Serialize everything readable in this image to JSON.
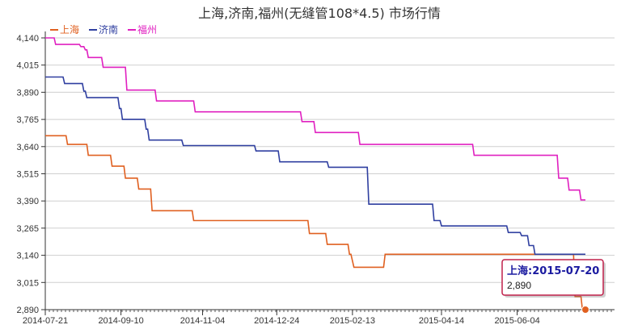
{
  "chart_data": {
    "type": "line",
    "title": "上海,济南,福州(无缝管108*4.5) 市场行情",
    "xlabel": "",
    "ylabel": "",
    "ylim": [
      2890,
      4140
    ],
    "yticks": [
      "2,890",
      "3,015",
      "3,140",
      "3,265",
      "3,390",
      "3,515",
      "3,640",
      "3,765",
      "3,890",
      "4,015",
      "4,140"
    ],
    "xticks": [
      "2014-07-21",
      "2014-09-10",
      "2014-11-04",
      "2014-12-24",
      "2015-02-13",
      "2015-04-14",
      "2015-06-04"
    ],
    "xtick_values": [
      "2014-07-21",
      "2014-09-10",
      "2014-11-04",
      "2014-12-24",
      "2015-02-13",
      "2015-04-14",
      "2015-06-04"
    ],
    "xlim": [
      "2014-07-21",
      "2015-07-20"
    ],
    "legend_position": "top-left",
    "grid": "horizontal",
    "series": [
      {
        "name": "上海",
        "color": "#e06020",
        "points": [
          [
            "2014-07-21",
            3690
          ],
          [
            "2014-08-04",
            3690
          ],
          [
            "2014-08-05",
            3650
          ],
          [
            "2014-08-18",
            3650
          ],
          [
            "2014-08-19",
            3600
          ],
          [
            "2014-09-03",
            3600
          ],
          [
            "2014-09-04",
            3550
          ],
          [
            "2014-09-12",
            3550
          ],
          [
            "2014-09-13",
            3495
          ],
          [
            "2014-09-21",
            3495
          ],
          [
            "2014-09-22",
            3445
          ],
          [
            "2014-09-30",
            3445
          ],
          [
            "2014-10-01",
            3345
          ],
          [
            "2014-10-28",
            3345
          ],
          [
            "2014-10-29",
            3300
          ],
          [
            "2015-01-14",
            3300
          ],
          [
            "2015-01-15",
            3240
          ],
          [
            "2015-01-26",
            3240
          ],
          [
            "2015-01-27",
            3190
          ],
          [
            "2015-02-10",
            3190
          ],
          [
            "2015-02-11",
            3145
          ],
          [
            "2015-02-12",
            3145
          ],
          [
            "2015-02-14",
            3085
          ],
          [
            "2015-03-06",
            3085
          ],
          [
            "2015-03-07",
            3145
          ],
          [
            "2015-07-12",
            3145
          ],
          [
            "2015-07-13",
            2950
          ],
          [
            "2015-07-17",
            2950
          ],
          [
            "2015-07-18",
            2890
          ],
          [
            "2015-07-20",
            2890
          ]
        ]
      },
      {
        "name": "济南",
        "color": "#2f3fa0",
        "points": [
          [
            "2014-07-21",
            3960
          ],
          [
            "2014-08-02",
            3960
          ],
          [
            "2014-08-03",
            3930
          ],
          [
            "2014-08-15",
            3930
          ],
          [
            "2014-08-16",
            3895
          ],
          [
            "2014-08-17",
            3895
          ],
          [
            "2014-08-18",
            3865
          ],
          [
            "2014-09-08",
            3865
          ],
          [
            "2014-09-09",
            3815
          ],
          [
            "2014-09-10",
            3815
          ],
          [
            "2014-09-11",
            3765
          ],
          [
            "2014-09-26",
            3765
          ],
          [
            "2014-09-27",
            3720
          ],
          [
            "2014-09-28",
            3720
          ],
          [
            "2014-09-29",
            3670
          ],
          [
            "2014-10-21",
            3670
          ],
          [
            "2014-10-22",
            3645
          ],
          [
            "2014-12-09",
            3645
          ],
          [
            "2014-12-10",
            3620
          ],
          [
            "2014-12-25",
            3620
          ],
          [
            "2014-12-26",
            3570
          ],
          [
            "2015-01-27",
            3570
          ],
          [
            "2015-01-28",
            3545
          ],
          [
            "2015-02-23",
            3545
          ],
          [
            "2015-02-24",
            3375
          ],
          [
            "2015-04-08",
            3375
          ],
          [
            "2015-04-09",
            3300
          ],
          [
            "2015-04-13",
            3300
          ],
          [
            "2015-04-14",
            3275
          ],
          [
            "2015-05-28",
            3275
          ],
          [
            "2015-05-29",
            3245
          ],
          [
            "2015-06-06",
            3245
          ],
          [
            "2015-06-07",
            3230
          ],
          [
            "2015-06-11",
            3230
          ],
          [
            "2015-06-12",
            3185
          ],
          [
            "2015-06-15",
            3185
          ],
          [
            "2015-06-16",
            3145
          ],
          [
            "2015-07-20",
            3145
          ]
        ]
      },
      {
        "name": "福州",
        "color": "#e020c0",
        "points": [
          [
            "2014-07-21",
            4140
          ],
          [
            "2014-07-27",
            4140
          ],
          [
            "2014-07-28",
            4110
          ],
          [
            "2014-08-13",
            4110
          ],
          [
            "2014-08-14",
            4100
          ],
          [
            "2014-08-16",
            4100
          ],
          [
            "2014-08-17",
            4085
          ],
          [
            "2014-08-18",
            4085
          ],
          [
            "2014-08-19",
            4050
          ],
          [
            "2014-08-28",
            4050
          ],
          [
            "2014-08-29",
            4005
          ],
          [
            "2014-09-13",
            4005
          ],
          [
            "2014-09-14",
            3900
          ],
          [
            "2014-10-03",
            3900
          ],
          [
            "2014-10-04",
            3850
          ],
          [
            "2014-10-29",
            3850
          ],
          [
            "2014-10-30",
            3800
          ],
          [
            "2015-01-09",
            3800
          ],
          [
            "2015-01-10",
            3755
          ],
          [
            "2015-01-18",
            3755
          ],
          [
            "2015-01-19",
            3705
          ],
          [
            "2015-02-17",
            3705
          ],
          [
            "2015-02-18",
            3650
          ],
          [
            "2015-05-05",
            3650
          ],
          [
            "2015-05-06",
            3600
          ],
          [
            "2015-07-01",
            3600
          ],
          [
            "2015-07-02",
            3495
          ],
          [
            "2015-07-08",
            3495
          ],
          [
            "2015-07-09",
            3440
          ],
          [
            "2015-07-16",
            3440
          ],
          [
            "2015-07-17",
            3395
          ],
          [
            "2015-07-20",
            3395
          ]
        ]
      }
    ],
    "tooltip": {
      "title": "上海:2015-07-20",
      "value": "2,890",
      "border_color": "#c0204a"
    }
  }
}
